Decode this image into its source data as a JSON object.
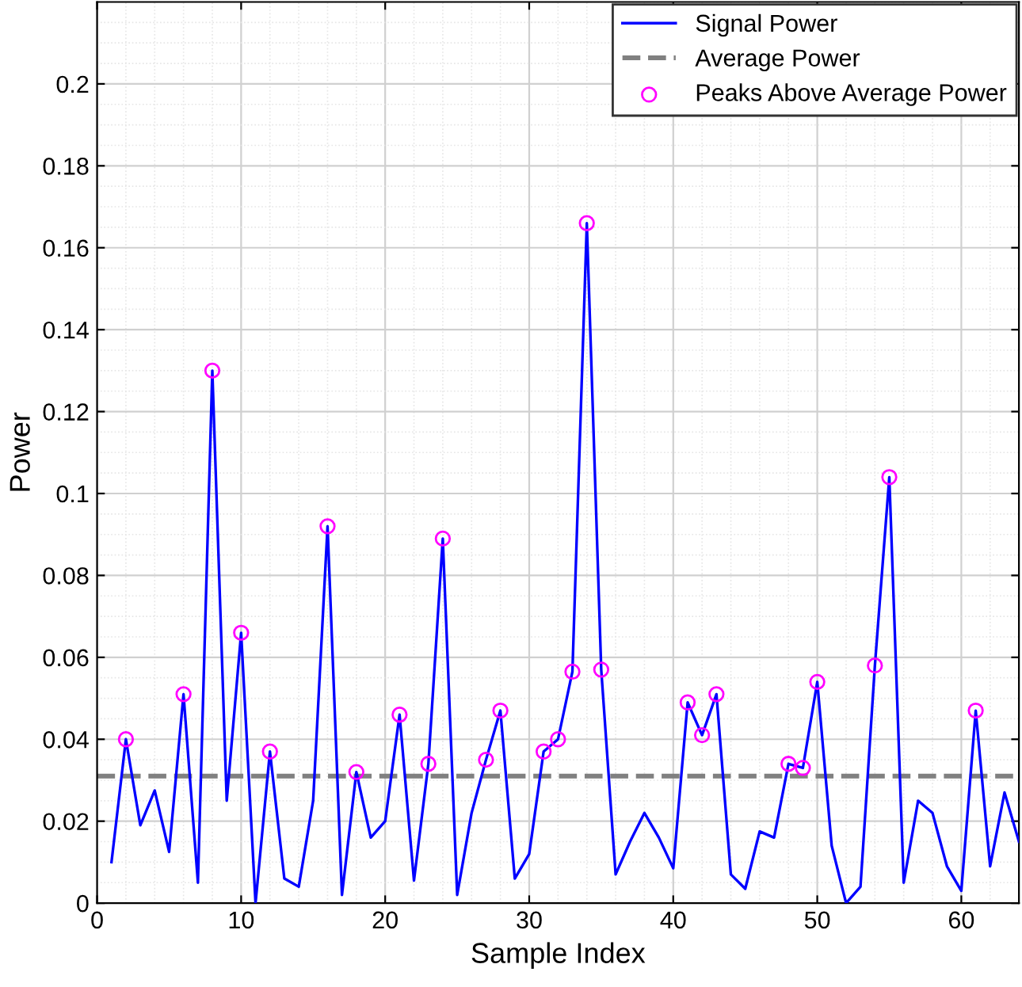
{
  "chart_data": {
    "type": "line",
    "xlabel": "Sample Index",
    "ylabel": "Power",
    "xlim": [
      0,
      64
    ],
    "xticks": [
      0,
      10,
      20,
      30,
      40,
      50,
      60
    ],
    "ylim": [
      0,
      0.22
    ],
    "yticks": [
      0,
      0.02,
      0.04,
      0.06,
      0.08,
      0.1,
      0.12,
      0.14,
      0.16,
      0.18,
      0.2
    ],
    "grid": true,
    "legend": "top right",
    "series": [
      {
        "name": "Signal Power",
        "color": "#0000ff",
        "marker": "none",
        "line_style": "solid",
        "x": [
          1,
          2,
          3,
          4,
          5,
          6,
          7,
          8,
          9,
          10,
          11,
          12,
          13,
          14,
          15,
          16,
          17,
          18,
          19,
          20,
          21,
          22,
          23,
          24,
          25,
          26,
          27,
          28,
          29,
          30,
          31,
          32,
          33,
          34,
          35,
          36,
          37,
          38,
          39,
          40,
          41,
          42,
          43,
          44,
          45,
          46,
          47,
          48,
          49,
          50,
          51,
          52,
          53,
          54,
          55,
          56,
          57,
          58,
          59,
          60,
          61,
          62,
          63,
          64
        ],
        "values": [
          0.01,
          0.04,
          0.019,
          0.0275,
          0.0125,
          0.051,
          0.005,
          0.13,
          0.025,
          0.066,
          0.0,
          0.037,
          0.006,
          0.004,
          0.025,
          0.092,
          0.002,
          0.032,
          0.016,
          0.02,
          0.046,
          0.0055,
          0.034,
          0.089,
          0.002,
          0.022,
          0.035,
          0.047,
          0.006,
          0.012,
          0.037,
          0.04,
          0.0565,
          0.166,
          0.057,
          0.007,
          0.015,
          0.022,
          0.016,
          0.0085,
          0.049,
          0.041,
          0.051,
          0.007,
          0.0035,
          0.0175,
          0.016,
          0.034,
          0.033,
          0.054,
          0.014,
          0.0,
          0.004,
          0.058,
          0.104,
          0.005,
          0.025,
          0.022,
          0.009,
          0.003,
          0.047,
          0.009,
          0.027,
          0.015
        ]
      },
      {
        "name": "Peaks Above Average Power",
        "type": "scatter",
        "color": "#ff00ff",
        "marker": "circle",
        "x": [
          2,
          6,
          8,
          10,
          12,
          16,
          18,
          21,
          23,
          24,
          27,
          28,
          31,
          32,
          33,
          34,
          35,
          41,
          42,
          43,
          48,
          49,
          50,
          54,
          55,
          61
        ],
        "values": [
          0.04,
          0.051,
          0.13,
          0.066,
          0.037,
          0.092,
          0.032,
          0.046,
          0.034,
          0.089,
          0.035,
          0.047,
          0.037,
          0.04,
          0.0565,
          0.166,
          0.057,
          0.049,
          0.041,
          0.051,
          0.034,
          0.033,
          0.054,
          0.058,
          0.104,
          0.047
        ]
      }
    ],
    "ref_lines": [
      {
        "axis": "y",
        "value": 0.031,
        "label": "Average Power",
        "color": "#808080",
        "line_style": "dashed"
      }
    ]
  }
}
